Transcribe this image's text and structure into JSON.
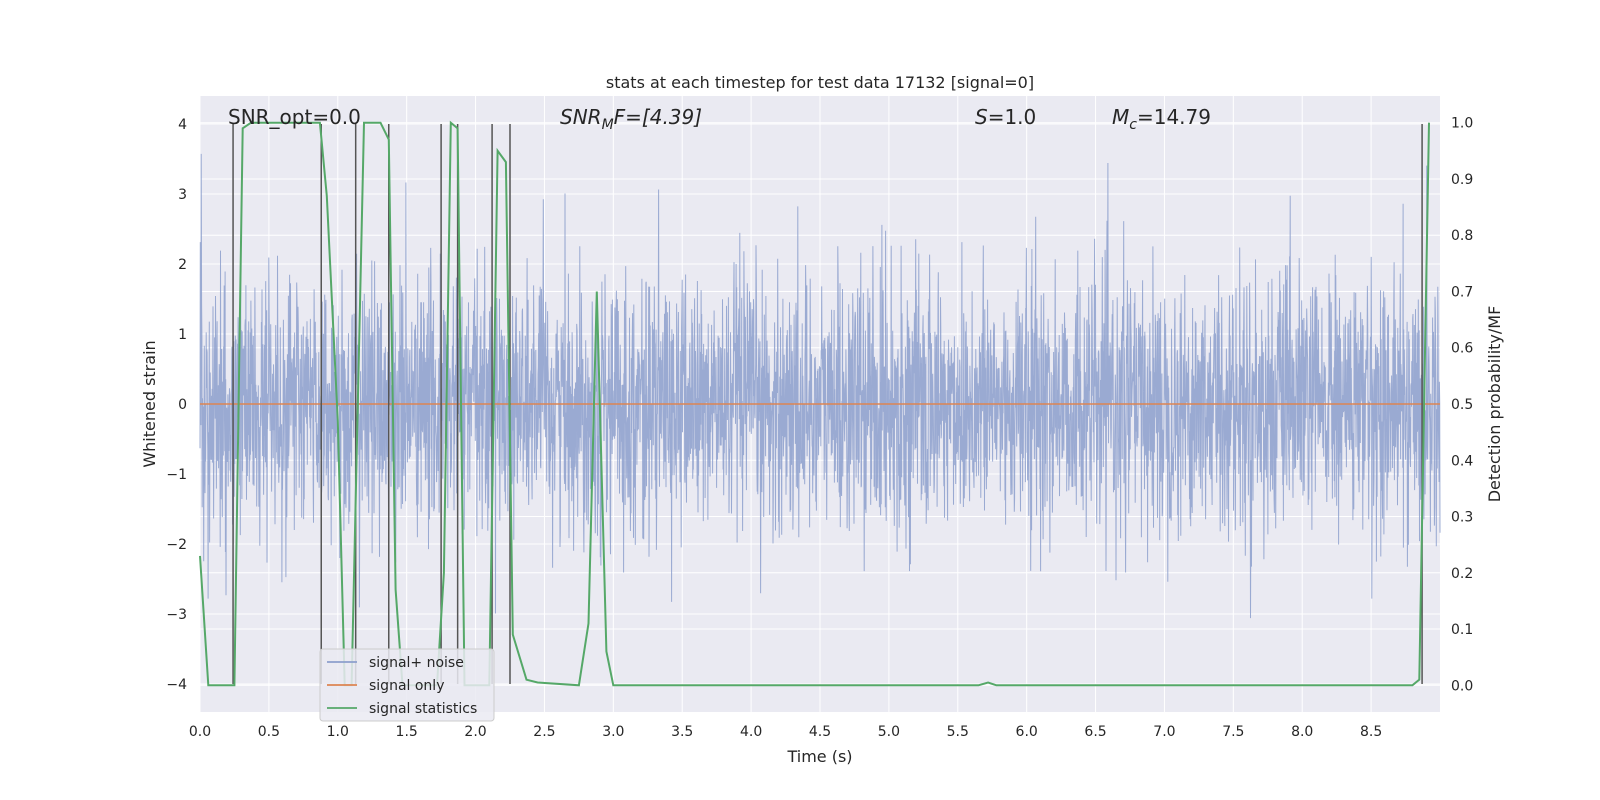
{
  "chart_data": {
    "type": "line",
    "title": "stats at each timestep for test data 17132 [signal=0]",
    "xlabel": "Time (s)",
    "ylabel": "Whitened strain",
    "y2label": "Detection probability/MF",
    "xlim": [
      0,
      9.0
    ],
    "ylim": [
      -4.4,
      4.4
    ],
    "y2lim": [
      -0.0475,
      1.0475
    ],
    "xticks": [
      "0.0",
      "0.5",
      "1.0",
      "1.5",
      "2.0",
      "2.5",
      "3.0",
      "3.5",
      "4.0",
      "4.5",
      "5.0",
      "5.5",
      "6.0",
      "6.5",
      "7.0",
      "7.5",
      "8.0",
      "8.5"
    ],
    "yticks": [
      "−4",
      "−3",
      "−2",
      "−1",
      "0",
      "1",
      "2",
      "3",
      "4"
    ],
    "y2ticks": [
      "0.0",
      "0.1",
      "0.2",
      "0.3",
      "0.4",
      "0.5",
      "0.6",
      "0.7",
      "0.8",
      "0.9",
      "1.0"
    ],
    "grid": true,
    "legend": {
      "placement": "lower-left",
      "entries": [
        {
          "name": "signal+ noise",
          "color": "#8c9fcc"
        },
        {
          "name": "signal only",
          "color": "#dd8452"
        },
        {
          "name": "signal statistics",
          "color": "#55a868"
        }
      ]
    },
    "annotations": {
      "snr_opt": "SNR_opt=0.0",
      "snr_mf_base": "SNR",
      "snr_mf_sub": "M",
      "snr_mf_rest": "F=[4.39]",
      "s_var": "S",
      "s_rest": "=1.0",
      "mc_base": "M",
      "mc_sub": "c",
      "mc_rest": "=14.79"
    },
    "series": [
      {
        "name": "signal statistics",
        "axis": "y2",
        "x": [
          0.0,
          0.06,
          0.25,
          0.31,
          0.37,
          0.87,
          0.92,
          1.0,
          1.05,
          1.1,
          1.19,
          1.31,
          1.37,
          1.42,
          1.47,
          1.72,
          1.77,
          1.82,
          1.87,
          1.92,
          1.97,
          2.05,
          2.1,
          2.16,
          2.22,
          2.27,
          2.37,
          2.45,
          2.75,
          2.82,
          2.88,
          2.95,
          3.0,
          5.65,
          5.72,
          5.78,
          8.8,
          8.85,
          8.92
        ],
        "y": [
          0.23,
          0.0,
          0.0,
          0.99,
          1.0,
          1.0,
          0.87,
          0.47,
          0.0,
          0.0,
          1.0,
          1.0,
          0.97,
          0.17,
          0.0,
          0.0,
          0.2,
          1.0,
          0.99,
          0.0,
          0.0,
          0.0,
          0.0,
          0.95,
          0.93,
          0.09,
          0.01,
          0.005,
          0.0,
          0.11,
          0.7,
          0.06,
          0.0,
          0.0,
          0.005,
          0.0,
          0.0,
          0.01,
          1.0
        ]
      },
      {
        "name": "signal only",
        "axis": "y",
        "x": [
          0.0,
          9.0
        ],
        "y": [
          0.0,
          0.0
        ]
      },
      {
        "name": "signal+ noise",
        "axis": "y",
        "amplitude_band": [
          -1.6,
          1.6
        ],
        "peak_range": [
          -3.8,
          4.0
        ]
      }
    ],
    "vlines": [
      0.24,
      0.88,
      1.13,
      1.37,
      1.75,
      1.87,
      2.12,
      2.25,
      8.87
    ]
  },
  "colors": {
    "plot_bg": "#eaeaf2",
    "grid": "#ffffff",
    "noise": "#8c9fcc",
    "signal_only": "#dd8452",
    "stats": "#55a868",
    "vline": "#555555"
  }
}
